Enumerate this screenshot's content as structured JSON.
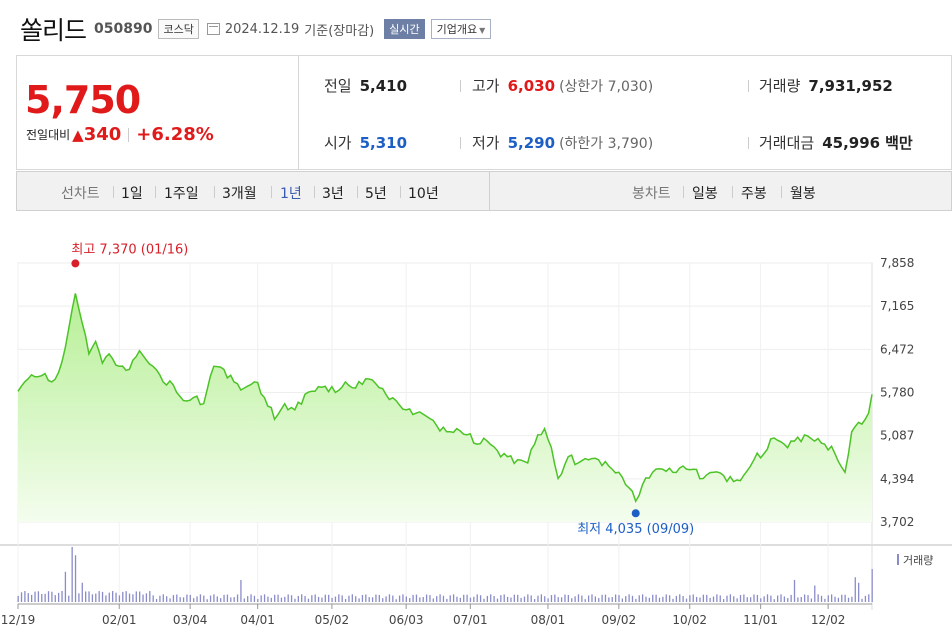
{
  "header": {
    "name": "쏠리드",
    "code": "050890",
    "market": "코스닥",
    "date": "2024.12.19",
    "basis": "기준(장마감)",
    "realtime_label": "실시간",
    "corp_label": "기업개요"
  },
  "summary": {
    "price": "5,750",
    "change_label": "전일대비",
    "change_arrow": "▲",
    "change_amount": "340",
    "change_percent": "+6.28%",
    "prev_label": "전일",
    "prev_value": "5,410",
    "high_label": "고가",
    "high_value": "6,030",
    "upper_limit": "(상한가 7,030)",
    "volume_label": "거래량",
    "volume_value": "7,931,952",
    "open_label": "시가",
    "open_value": "5,310",
    "low_label": "저가",
    "low_value": "5,290",
    "lower_limit": "(하한가 3,790)",
    "amount_label": "거래대금",
    "amount_value": "45,996",
    "amount_unit": "백만"
  },
  "periods": {
    "line_label": "선차트",
    "items": [
      "1일",
      "1주일",
      "3개월",
      "1년",
      "3년",
      "5년",
      "10년"
    ],
    "active": "1년",
    "candle_label": "봉차트",
    "candle_items": [
      "일봉",
      "주봉",
      "월봉"
    ]
  },
  "chart_data": {
    "type": "area",
    "colors": {
      "line": "#4cc326",
      "fill_top": "#b6ef95",
      "fill_bottom": "#f4fdee",
      "high": "#d8202a",
      "low": "#1d5fc4",
      "volume": "#8a8cc9"
    },
    "ylim": [
      3702,
      7858
    ],
    "yticks": [
      "7,858",
      "7,165",
      "6,472",
      "5,780",
      "5,087",
      "4,394",
      "3,702"
    ],
    "ytick_values": [
      7858,
      7165,
      6472,
      5780,
      5087,
      4394,
      3702
    ],
    "xticks": [
      "12/19",
      "02/01",
      "03/04",
      "04/01",
      "05/02",
      "06/03",
      "07/01",
      "08/01",
      "09/02",
      "10/02",
      "11/01",
      "12/02"
    ],
    "xtick_index": [
      0,
      30,
      51,
      71,
      93,
      115,
      134,
      157,
      178,
      199,
      220,
      240
    ],
    "annotation_high": "최고 7,370 (01/16)",
    "annotation_low": "최저 4,035 (09/09)",
    "high_index": 17,
    "high_value": 7370,
    "low_index": 183,
    "low_value": 4035,
    "volume_label": "거래량",
    "series_anchors": [
      [
        0,
        5800
      ],
      [
        3,
        6000
      ],
      [
        7,
        6050
      ],
      [
        10,
        5950
      ],
      [
        12,
        6100
      ],
      [
        14,
        6500
      ],
      [
        16,
        7100
      ],
      [
        17,
        7370
      ],
      [
        19,
        6900
      ],
      [
        21,
        6400
      ],
      [
        23,
        6600
      ],
      [
        25,
        6250
      ],
      [
        27,
        6400
      ],
      [
        30,
        6200
      ],
      [
        33,
        6150
      ],
      [
        36,
        6450
      ],
      [
        38,
        6300
      ],
      [
        40,
        6200
      ],
      [
        43,
        5950
      ],
      [
        46,
        5900
      ],
      [
        49,
        5650
      ],
      [
        52,
        5700
      ],
      [
        55,
        5600
      ],
      [
        58,
        6200
      ],
      [
        61,
        6150
      ],
      [
        64,
        5950
      ],
      [
        67,
        5850
      ],
      [
        70,
        5950
      ],
      [
        73,
        5700
      ],
      [
        76,
        5350
      ],
      [
        79,
        5600
      ],
      [
        82,
        5500
      ],
      [
        85,
        5750
      ],
      [
        88,
        5800
      ],
      [
        91,
        5880
      ],
      [
        94,
        5780
      ],
      [
        97,
        5950
      ],
      [
        100,
        5850
      ],
      [
        103,
        6000
      ],
      [
        106,
        5920
      ],
      [
        109,
        5750
      ],
      [
        112,
        5650
      ],
      [
        115,
        5500
      ],
      [
        118,
        5450
      ],
      [
        121,
        5400
      ],
      [
        124,
        5250
      ],
      [
        127,
        5150
      ],
      [
        130,
        5200
      ],
      [
        133,
        5100
      ],
      [
        136,
        4950
      ],
      [
        139,
        5000
      ],
      [
        142,
        4850
      ],
      [
        145,
        4750
      ],
      [
        148,
        4700
      ],
      [
        151,
        4650
      ],
      [
        154,
        5100
      ],
      [
        156,
        5200
      ],
      [
        158,
        4900
      ],
      [
        160,
        4400
      ],
      [
        163,
        4750
      ],
      [
        166,
        4650
      ],
      [
        169,
        4700
      ],
      [
        172,
        4700
      ],
      [
        175,
        4600
      ],
      [
        178,
        4500
      ],
      [
        181,
        4250
      ],
      [
        183,
        4035
      ],
      [
        185,
        4300
      ],
      [
        188,
        4500
      ],
      [
        191,
        4550
      ],
      [
        194,
        4500
      ],
      [
        197,
        4600
      ],
      [
        200,
        4550
      ],
      [
        203,
        4400
      ],
      [
        206,
        4500
      ],
      [
        209,
        4450
      ],
      [
        212,
        4350
      ],
      [
        215,
        4450
      ],
      [
        218,
        4700
      ],
      [
        221,
        4800
      ],
      [
        224,
        5050
      ],
      [
        227,
        4950
      ],
      [
        230,
        5000
      ],
      [
        233,
        5100
      ],
      [
        236,
        5000
      ],
      [
        239,
        4950
      ],
      [
        242,
        4800
      ],
      [
        245,
        4500
      ],
      [
        247,
        5150
      ],
      [
        249,
        5300
      ],
      [
        251,
        5350
      ],
      [
        252,
        5450
      ],
      [
        253,
        5750
      ]
    ],
    "volume_spikes": [
      [
        14,
        0.55
      ],
      [
        16,
        1.0
      ],
      [
        17,
        0.85
      ],
      [
        19,
        0.35
      ],
      [
        66,
        0.4
      ],
      [
        230,
        0.4
      ],
      [
        236,
        0.3
      ],
      [
        248,
        0.45
      ],
      [
        249,
        0.35
      ],
      [
        253,
        0.6
      ]
    ]
  }
}
